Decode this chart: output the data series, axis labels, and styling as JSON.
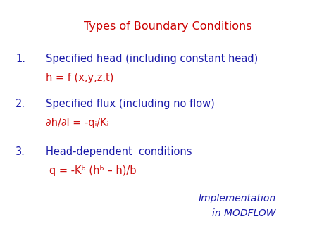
{
  "title": "Types of Boundary Conditions",
  "title_color": "#cc0000",
  "background_color": "#ffffff",
  "blue_color": "#1a1aaa",
  "red_color": "#cc1111",
  "item1_main": "Specified head (including constant head)",
  "item1_sub": "h = f (x,y,z,t)",
  "item2_main": "Specified flux (including no flow)",
  "item2_sub": "∂h/∂l = -qᵢ/Kᵢ",
  "item3_main": "Head-dependent  conditions",
  "item3_sub": "q = -Kᵇ (hᵇ – h)/b",
  "footnote_line1": "Implementation",
  "footnote_line2": "in MODFLOW"
}
